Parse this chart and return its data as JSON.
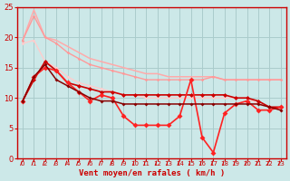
{
  "background_color": "#cce8e8",
  "grid_color": "#aacccc",
  "xlabel": "Vent moyen/en rafales ( km/h )",
  "xlim": [
    -0.5,
    23.5
  ],
  "ylim": [
    0,
    25
  ],
  "xticks": [
    0,
    1,
    2,
    3,
    4,
    5,
    6,
    7,
    8,
    9,
    10,
    11,
    12,
    13,
    14,
    15,
    16,
    17,
    18,
    19,
    20,
    21,
    22,
    23
  ],
  "yticks": [
    0,
    5,
    10,
    15,
    20,
    25
  ],
  "lines": [
    {
      "x": [
        0,
        1,
        2,
        3,
        4,
        5,
        6,
        7,
        8,
        9,
        10,
        11,
        12,
        13,
        14,
        15,
        16,
        17,
        18,
        19,
        20,
        21,
        22,
        23
      ],
      "y": [
        19.5,
        24.5,
        20.0,
        19.5,
        18.5,
        17.5,
        16.5,
        16.0,
        15.5,
        15.0,
        14.5,
        14.0,
        14.0,
        13.5,
        13.5,
        13.5,
        13.5,
        13.5,
        13.0,
        13.0,
        13.0,
        13.0,
        13.0,
        13.0
      ],
      "color": "#ffaaaa",
      "lw": 1.1,
      "marker": null,
      "ms": 0
    },
    {
      "x": [
        0,
        1,
        2,
        3,
        4,
        5,
        6,
        7,
        8,
        9,
        10,
        11,
        12,
        13,
        14,
        15,
        16,
        17,
        18,
        19,
        20,
        21,
        22,
        23
      ],
      "y": [
        19.5,
        23.5,
        20.0,
        19.0,
        17.5,
        16.5,
        15.5,
        15.0,
        14.5,
        14.0,
        13.5,
        13.0,
        13.0,
        13.0,
        13.0,
        13.0,
        13.0,
        13.5,
        13.0,
        13.0,
        13.0,
        13.0,
        13.0,
        13.0
      ],
      "color": "#ff9999",
      "lw": 1.0,
      "marker": "D",
      "ms": 1.8
    },
    {
      "x": [
        0,
        1,
        2,
        3,
        4,
        5,
        6,
        7,
        8,
        9,
        10,
        11,
        12,
        13,
        14,
        15,
        16,
        17,
        18,
        19,
        20,
        21,
        22,
        23
      ],
      "y": [
        19.0,
        19.5,
        16.0,
        15.0,
        13.5,
        12.5,
        12.0,
        11.5,
        11.0,
        10.5,
        10.5,
        10.0,
        10.0,
        10.0,
        10.0,
        10.0,
        10.0,
        10.0,
        10.0,
        10.0,
        10.0,
        9.0,
        8.5,
        8.0
      ],
      "color": "#ffcccc",
      "lw": 1.0,
      "marker": "D",
      "ms": 1.8
    },
    {
      "x": [
        0,
        1,
        2,
        3,
        4,
        5,
        6,
        7,
        8,
        9,
        10,
        11,
        12,
        13,
        14,
        15,
        16,
        17,
        18,
        19,
        20,
        21,
        22,
        23
      ],
      "y": [
        9.5,
        13.0,
        16.0,
        14.5,
        12.5,
        12.0,
        11.5,
        11.0,
        11.0,
        10.5,
        10.5,
        10.5,
        10.5,
        10.5,
        10.5,
        10.5,
        10.5,
        10.5,
        10.5,
        10.0,
        10.0,
        9.5,
        8.5,
        8.5
      ],
      "color": "#cc0000",
      "lw": 1.2,
      "marker": "D",
      "ms": 2.5
    },
    {
      "x": [
        0,
        1,
        2,
        3,
        4,
        5,
        6,
        7,
        8,
        9,
        10,
        11,
        12,
        13,
        14,
        15,
        16,
        17,
        18,
        19,
        20,
        21,
        22,
        23
      ],
      "y": [
        9.5,
        13.5,
        15.0,
        14.5,
        12.5,
        11.0,
        9.5,
        10.5,
        10.0,
        7.0,
        5.5,
        5.5,
        5.5,
        5.5,
        7.0,
        13.0,
        3.5,
        1.0,
        7.5,
        9.0,
        9.5,
        8.0,
        8.0,
        8.5
      ],
      "color": "#ff2222",
      "lw": 1.2,
      "marker": "D",
      "ms": 3.0
    },
    {
      "x": [
        0,
        1,
        2,
        3,
        4,
        5,
        6,
        7,
        8,
        9,
        10,
        11,
        12,
        13,
        14,
        15,
        16,
        17,
        18,
        19,
        20,
        21,
        22,
        23
      ],
      "y": [
        9.5,
        13.5,
        15.5,
        13.0,
        12.0,
        11.0,
        10.0,
        9.5,
        9.5,
        9.0,
        9.0,
        9.0,
        9.0,
        9.0,
        9.0,
        9.0,
        9.0,
        9.0,
        9.0,
        9.0,
        9.0,
        9.0,
        8.5,
        8.0
      ],
      "color": "#880000",
      "lw": 1.1,
      "marker": "D",
      "ms": 2.0
    }
  ]
}
